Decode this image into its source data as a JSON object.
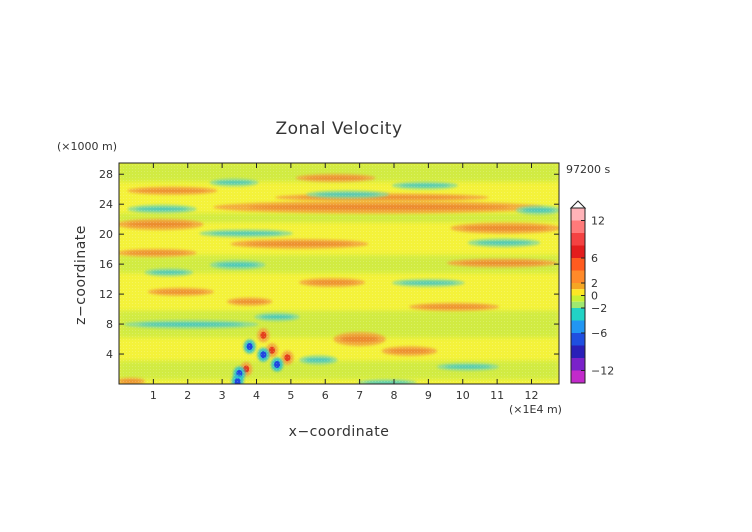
{
  "chart_data": {
    "type": "heatmap",
    "title": "Zonal Velocity",
    "xlabel": "x−coordinate",
    "ylabel": "z−coordinate",
    "x_unit": "(×1E4 m)",
    "y_unit": "(×1000 m)",
    "time_label": "97200 s",
    "xlim": [
      0,
      12.8
    ],
    "ylim": [
      0,
      29.5
    ],
    "x_ticks": [
      1,
      2,
      3,
      4,
      5,
      6,
      7,
      8,
      9,
      10,
      11,
      12
    ],
    "x_tick_labels": [
      "1",
      "2",
      "3",
      "4",
      "5",
      "6",
      "7",
      "8",
      "9",
      "10",
      "11",
      "12"
    ],
    "y_ticks": [
      4,
      8,
      12,
      16,
      20,
      24,
      28
    ],
    "y_tick_labels": [
      "4",
      "8",
      "12",
      "16",
      "20",
      "24",
      "28"
    ],
    "colorbar": {
      "label_values": [
        12,
        6,
        2,
        0,
        -2,
        -6,
        -12
      ],
      "tick_labels": [
        "12",
        "6",
        "2",
        "0",
        "−2",
        "−6",
        "−12"
      ],
      "levels": [
        14,
        12,
        10,
        8,
        6,
        4,
        2,
        1,
        0,
        -1,
        -2,
        -4,
        -6,
        -8,
        -10,
        -12,
        -14
      ],
      "colors": [
        "#ffb3b8",
        "#ff7a7a",
        "#f44242",
        "#e31d1d",
        "#ff5b1f",
        "#ff8a2a",
        "#f5a623",
        "#fde725",
        "#c9f033",
        "#9fe870",
        "#22d3c5",
        "#2196f3",
        "#1f4fe0",
        "#2a1fb8",
        "#7a22c9",
        "#c22acb",
        "#ff2fb3"
      ],
      "extend_top": true
    },
    "field_colors": {
      "zero": "#f4f23a",
      "weak_neg": "#b5e64a",
      "neg": "#86d99a",
      "strong_neg": "#2bbfd0",
      "pos": "#f2a03c",
      "strong_pos": "#e9802a",
      "extreme_neg": "#1f3fe0",
      "extreme_pos": "#e23a1a"
    },
    "bands": [
      {
        "sign": "pos",
        "x": [
          5.2,
          7.4
        ],
        "z": [
          27.2,
          27.8
        ]
      },
      {
        "sign": "pos",
        "x": [
          0.3,
          2.8
        ],
        "z": [
          25.5,
          26.1
        ]
      },
      {
        "sign": "pos",
        "x": [
          4.6,
          10.7
        ],
        "z": [
          24.6,
          25.2
        ]
      },
      {
        "sign": "pos",
        "x": [
          2.8,
          12.3
        ],
        "z": [
          23.0,
          24.2
        ]
      },
      {
        "sign": "pos",
        "x": [
          0.0,
          2.4
        ],
        "z": [
          20.8,
          21.8
        ]
      },
      {
        "sign": "pos",
        "x": [
          9.7,
          12.8
        ],
        "z": [
          20.3,
          21.3
        ]
      },
      {
        "sign": "pos",
        "x": [
          3.3,
          7.2
        ],
        "z": [
          18.3,
          19.1
        ]
      },
      {
        "sign": "pos",
        "x": [
          0.0,
          2.2
        ],
        "z": [
          17.2,
          17.8
        ]
      },
      {
        "sign": "pos",
        "x": [
          9.6,
          12.7
        ],
        "z": [
          15.8,
          16.5
        ]
      },
      {
        "sign": "pos",
        "x": [
          5.3,
          7.1
        ],
        "z": [
          13.2,
          13.9
        ]
      },
      {
        "sign": "pos",
        "x": [
          0.9,
          2.7
        ],
        "z": [
          12.0,
          12.6
        ]
      },
      {
        "sign": "pos",
        "x": [
          3.2,
          4.4
        ],
        "z": [
          10.7,
          11.3
        ]
      },
      {
        "sign": "pos",
        "x": [
          8.5,
          11.0
        ],
        "z": [
          10.0,
          10.6
        ]
      },
      {
        "sign": "pos",
        "x": [
          6.3,
          7.7
        ],
        "z": [
          5.3,
          6.7
        ]
      },
      {
        "sign": "pos",
        "x": [
          7.7,
          9.2
        ],
        "z": [
          4.0,
          4.8
        ]
      },
      {
        "sign": "pos",
        "x": [
          0.0,
          0.7
        ],
        "z": [
          0.1,
          0.6
        ]
      },
      {
        "sign": "neg",
        "x": [
          2.7,
          4.0
        ],
        "z": [
          26.6,
          27.2
        ]
      },
      {
        "sign": "neg",
        "x": [
          8.0,
          9.8
        ],
        "z": [
          26.2,
          26.8
        ]
      },
      {
        "sign": "neg",
        "x": [
          5.5,
          7.8
        ],
        "z": [
          25.0,
          25.6
        ]
      },
      {
        "sign": "neg",
        "x": [
          0.3,
          2.2
        ],
        "z": [
          23.0,
          23.7
        ]
      },
      {
        "sign": "neg",
        "x": [
          11.6,
          12.8
        ],
        "z": [
          22.8,
          23.6
        ]
      },
      {
        "sign": "neg",
        "x": [
          2.4,
          5.0
        ],
        "z": [
          19.8,
          20.4
        ]
      },
      {
        "sign": "neg",
        "x": [
          10.2,
          12.2
        ],
        "z": [
          18.5,
          19.2
        ]
      },
      {
        "sign": "neg",
        "x": [
          2.7,
          4.2
        ],
        "z": [
          15.5,
          16.3
        ]
      },
      {
        "sign": "neg",
        "x": [
          0.8,
          2.1
        ],
        "z": [
          14.6,
          15.2
        ]
      },
      {
        "sign": "neg",
        "x": [
          8.0,
          10.0
        ],
        "z": [
          13.2,
          13.8
        ]
      },
      {
        "sign": "neg",
        "x": [
          0.2,
          4.0
        ],
        "z": [
          7.6,
          8.3
        ]
      },
      {
        "sign": "neg",
        "x": [
          4.0,
          5.2
        ],
        "z": [
          8.6,
          9.3
        ]
      },
      {
        "sign": "neg",
        "x": [
          5.3,
          6.3
        ],
        "z": [
          2.8,
          3.6
        ]
      },
      {
        "sign": "neg",
        "x": [
          9.3,
          11.0
        ],
        "z": [
          2.0,
          2.6
        ]
      },
      {
        "sign": "neg",
        "x": [
          7.0,
          8.6
        ],
        "z": [
          0.0,
          0.4
        ]
      }
    ],
    "hotspots": [
      {
        "sign": "extreme_pos",
        "x": 4.2,
        "z": 6.5
      },
      {
        "sign": "extreme_pos",
        "x": 4.45,
        "z": 4.5
      },
      {
        "sign": "extreme_pos",
        "x": 3.7,
        "z": 2.0
      },
      {
        "sign": "extreme_pos",
        "x": 4.9,
        "z": 3.5
      },
      {
        "sign": "extreme_neg",
        "x": 4.2,
        "z": 3.9
      },
      {
        "sign": "extreme_neg",
        "x": 3.8,
        "z": 5.0
      },
      {
        "sign": "extreme_neg",
        "x": 3.5,
        "z": 1.4
      },
      {
        "sign": "extreme_neg",
        "x": 3.45,
        "z": 0.3
      },
      {
        "sign": "extreme_neg",
        "x": 4.6,
        "z": 2.6
      }
    ]
  }
}
